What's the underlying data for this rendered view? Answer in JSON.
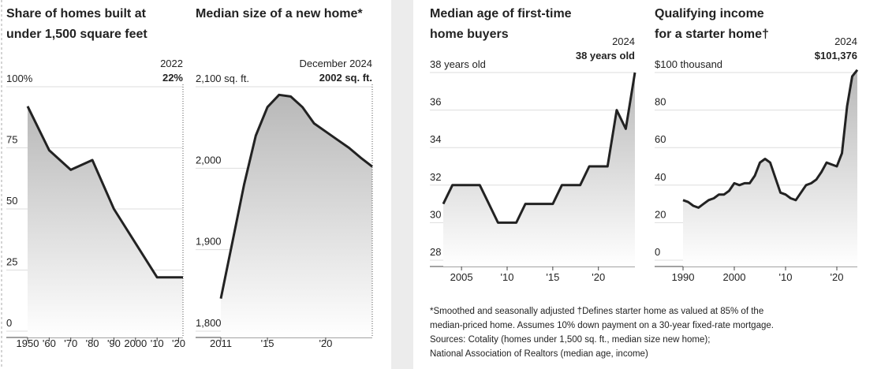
{
  "chart_data": [
    {
      "type": "line",
      "title": [
        "Share of homes built at",
        "under 1,500 square feet"
      ],
      "x": [
        1950,
        1960,
        1970,
        1980,
        1990,
        2000,
        2010,
        2022
      ],
      "values": [
        92,
        74,
        66,
        70,
        50,
        36,
        22,
        22
      ],
      "xlim": [
        1950,
        2022
      ],
      "xticks": [
        1950,
        {
          "value": 1960,
          "label": "'60"
        },
        {
          "value": 1970,
          "label": "'70"
        },
        {
          "value": 1980,
          "label": "'80"
        },
        {
          "value": 1990,
          "label": "'90"
        },
        2000,
        {
          "value": 2010,
          "label": "'10"
        },
        {
          "value": 2020,
          "label": "'20"
        }
      ],
      "ylim": [
        0,
        100
      ],
      "yticks": [
        {
          "value": 100,
          "label": "100%"
        },
        75,
        50,
        25,
        0
      ],
      "annotation": [
        "2022",
        "22%"
      ],
      "color": "#222222"
    },
    {
      "type": "line",
      "title": [
        "Median size of a new home*"
      ],
      "x": [
        2011,
        2012,
        2013,
        2014,
        2015,
        2016,
        2017,
        2018,
        2019,
        2020,
        2021,
        2022,
        2023,
        2024
      ],
      "values": [
        1840,
        1910,
        1980,
        2040,
        2075,
        2090,
        2088,
        2075,
        2055,
        2045,
        2035,
        2025,
        2013,
        2002
      ],
      "xlim": [
        2011,
        2024
      ],
      "xticks": [
        2011,
        {
          "value": 2015,
          "label": "'15"
        },
        {
          "value": 2020,
          "label": "'20"
        }
      ],
      "ylim": [
        1800,
        2100
      ],
      "yticks": [
        {
          "value": 2100,
          "label": "2,100 sq. ft."
        },
        {
          "value": 2000,
          "label": "2,000"
        },
        {
          "value": 1900,
          "label": "1,900"
        },
        {
          "value": 1800,
          "label": "1,800"
        }
      ],
      "annotation": [
        "December 2024",
        "2002 sq. ft."
      ],
      "color": "#222222"
    },
    {
      "type": "line",
      "title": [
        "Median age of first-time",
        "home buyers"
      ],
      "x": [
        2003,
        2004,
        2005,
        2006,
        2007,
        2008,
        2009,
        2010,
        2011,
        2012,
        2013,
        2014,
        2015,
        2016,
        2017,
        2018,
        2019,
        2020,
        2021,
        2022,
        2023,
        2024
      ],
      "values": [
        31,
        32,
        32,
        32,
        32,
        31,
        30,
        30,
        30,
        31,
        31,
        31,
        31,
        32,
        32,
        32,
        33,
        33,
        33,
        36,
        35,
        38
      ],
      "xlim": [
        2003,
        2024
      ],
      "xticks": [
        2005,
        {
          "value": 2010,
          "label": "'10"
        },
        {
          "value": 2015,
          "label": "'15"
        },
        {
          "value": 2020,
          "label": "'20"
        }
      ],
      "ylim": [
        28,
        38
      ],
      "yticks": [
        {
          "value": 38,
          "label": "38 years old"
        },
        36,
        34,
        32,
        30,
        28
      ],
      "annotation": [
        "2024",
        "38 years old"
      ],
      "color": "#222222"
    },
    {
      "type": "line",
      "title": [
        "Qualifying income",
        "for a starter home†"
      ],
      "x": [
        1990,
        1991,
        1992,
        1993,
        1994,
        1995,
        1996,
        1997,
        1998,
        1999,
        2000,
        2001,
        2002,
        2003,
        2004,
        2005,
        2006,
        2007,
        2008,
        2009,
        2010,
        2011,
        2012,
        2013,
        2014,
        2015,
        2016,
        2017,
        2018,
        2019,
        2020,
        2021,
        2022,
        2023,
        2024
      ],
      "values": [
        32,
        31,
        29,
        28,
        30,
        32,
        33,
        35,
        35,
        37,
        41,
        40,
        41,
        41,
        45,
        52,
        54,
        52,
        44,
        36,
        35,
        33,
        32,
        36,
        40,
        41,
        43,
        47,
        52,
        51,
        50,
        57,
        82,
        98,
        101.376
      ],
      "xlim": [
        1990,
        2024
      ],
      "xticks": [
        1990,
        2000,
        {
          "value": 2010,
          "label": "'10"
        },
        {
          "value": 2020,
          "label": "'20"
        }
      ],
      "ylim": [
        0,
        100
      ],
      "yticks": [
        {
          "value": 100,
          "label": "$100 thousand"
        },
        80,
        60,
        40,
        20,
        0
      ],
      "annotation": [
        "2024",
        "$101,376"
      ],
      "color": "#222222"
    }
  ],
  "footnotes": [
    "*Smoothed and seasonally adjusted   †Defines starter home as valued at 85% of the",
    "median-priced home. Assumes 10% down payment on a 30-year fixed-rate mortgage.",
    "Sources: Cotality (homes under 1,500 sq. ft., median size new home);",
    "National Association of Realtors (median age, income)"
  ]
}
